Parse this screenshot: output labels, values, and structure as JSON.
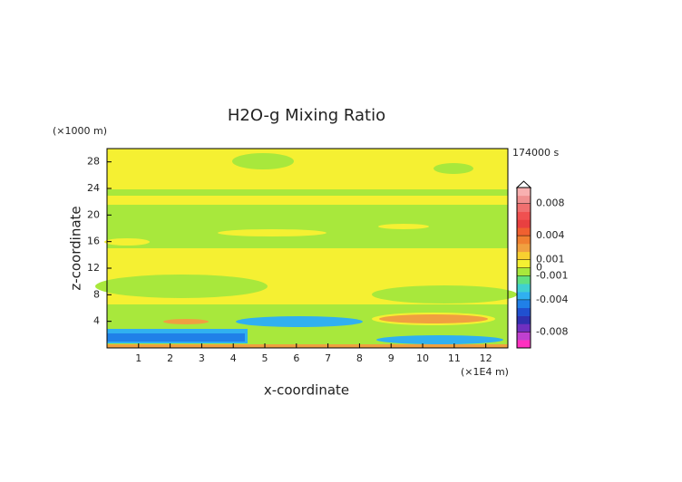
{
  "chart_data": {
    "type": "contour",
    "title": "H2O-g Mixing Ratio",
    "x_label": "x-coordinate",
    "y_label": "z-coordinate",
    "x_unit": "(×1E4 m)",
    "y_unit": "(×1000 m)",
    "time_label": "174000 s",
    "xlim": [
      0,
      12.7
    ],
    "xticks": [
      1,
      2,
      3,
      4,
      5,
      6,
      7,
      8,
      9,
      10,
      11,
      12
    ],
    "ylim": [
      0,
      30
    ],
    "yticks": [
      4,
      8,
      12,
      16,
      20,
      24,
      28
    ],
    "colorbar": {
      "lim": [
        -0.01,
        0.01
      ],
      "ticks": [
        0.008,
        0.004,
        0.001,
        0,
        -0.001,
        -0.004,
        -0.008
      ],
      "colors": [
        "#ff30c0",
        "#c040d0",
        "#7030c0",
        "#3030b0",
        "#2050d0",
        "#2080e8",
        "#30b0f0",
        "#40d0d0",
        "#60e080",
        "#a8e83c",
        "#f5f032",
        "#f8d030",
        "#f0a040",
        "#f08030",
        "#f06030",
        "#e84040",
        "#f05050",
        "#f07070",
        "#f09090",
        "#f8b0b0"
      ]
    }
  }
}
